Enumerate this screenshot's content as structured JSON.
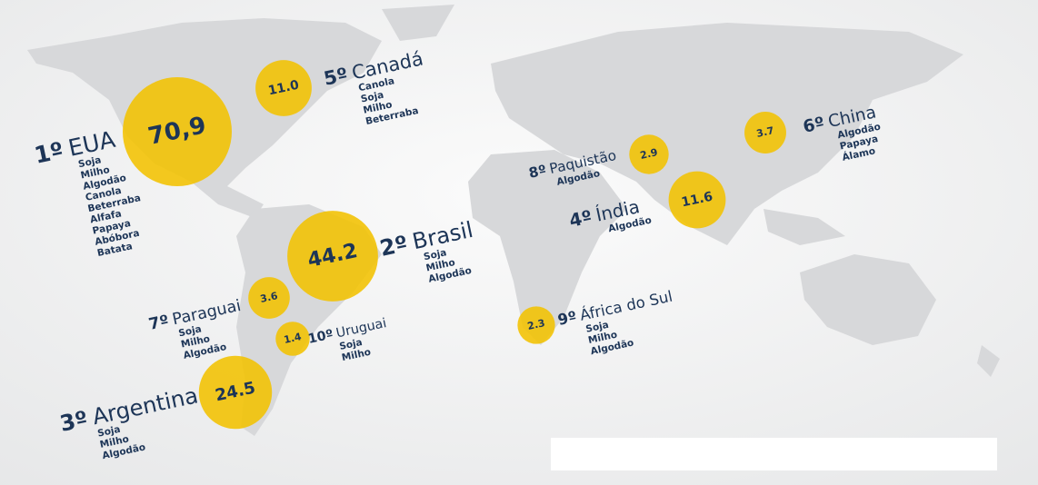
{
  "countries": [
    {
      "rank": "1º",
      "name": "EUA",
      "value": 70.9,
      "value_label": "70,9",
      "crops": [
        "Soja",
        "Milho",
        "Algodão",
        "Canola",
        "Beterraba",
        "Alfafa",
        "Papaya",
        "Abóbora",
        "Batata"
      ]
    },
    {
      "rank": "2º",
      "name": "Brasil",
      "value": 44.2,
      "value_label": "44.2",
      "crops": [
        "Soja",
        "Milho",
        "Algodão"
      ]
    },
    {
      "rank": "3º",
      "name": "Argentina",
      "value": 24.5,
      "value_label": "24.5",
      "crops": [
        "Soja",
        "Milho",
        "Algodão"
      ]
    },
    {
      "rank": "4º",
      "name": "Índia",
      "value": 11.6,
      "value_label": "11.6",
      "crops": [
        "Algodão"
      ]
    },
    {
      "rank": "5º",
      "name": "Canadá",
      "value": 11.0,
      "value_label": "11.0",
      "crops": [
        "Canola",
        "Soja",
        "Milho",
        "Beterraba"
      ]
    },
    {
      "rank": "6º",
      "name": "China",
      "value": 3.7,
      "value_label": "3.7",
      "crops": [
        "Algodão",
        "Papaya",
        "Álamo"
      ]
    },
    {
      "rank": "7º",
      "name": "Paraguai",
      "value": 3.6,
      "value_label": "3.6",
      "crops": [
        "Soja",
        "Milho",
        "Algodão"
      ]
    },
    {
      "rank": "8º",
      "name": "Paquistão",
      "value": 2.9,
      "value_label": "2.9",
      "crops": [
        "Algodão"
      ]
    },
    {
      "rank": "9º",
      "name": "África do Sul",
      "value": 2.3,
      "value_label": "2.3",
      "crops": [
        "Soja",
        "Milho",
        "Algodão"
      ]
    },
    {
      "rank": "10º",
      "name": "Uruguai",
      "value": 1.4,
      "value_label": "1.4",
      "crops": [
        "Soja",
        "Milho"
      ]
    }
  ]
}
